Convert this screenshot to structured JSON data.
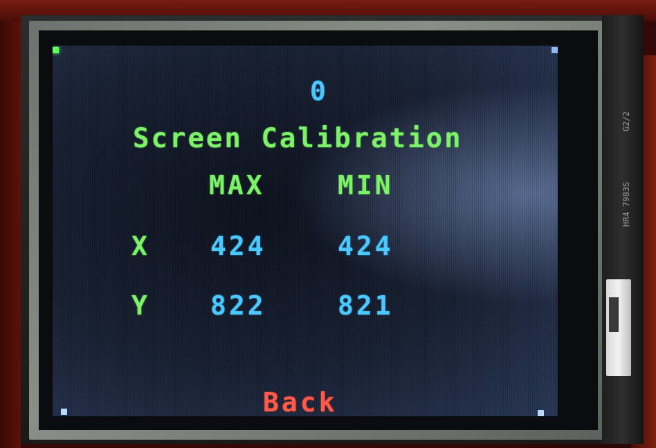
{
  "screen": {
    "counter": "0",
    "title": "Screen Calibration",
    "headers": {
      "max": "MAX",
      "min": "MIN"
    },
    "rows": [
      {
        "label": "X",
        "max": "424",
        "min": "424"
      },
      {
        "label": "Y",
        "max": "822",
        "min": "821"
      }
    ],
    "back_label": "Back"
  },
  "board": {
    "silk_top": "G2/2",
    "silk_mid": "HR4 7983S"
  },
  "colors": {
    "value_text": "#4cc8ff",
    "label_text": "#7ef06a",
    "back_text": "#ff5a4a",
    "screen_bg": "#1a2540"
  }
}
